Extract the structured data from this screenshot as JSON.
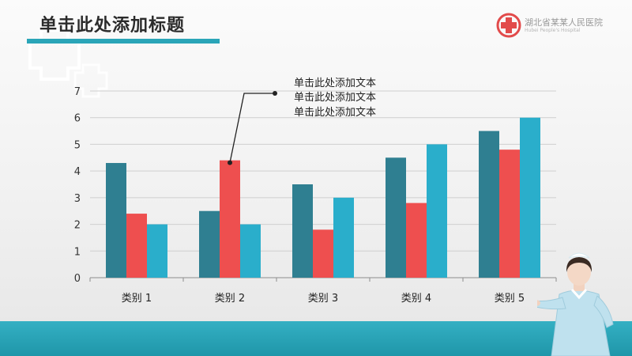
{
  "title": "单击此处添加标题",
  "logo": {
    "name": "湖北省某某人民医院",
    "subtitle": "Hubei People's Hospital"
  },
  "colors": {
    "accent": "#2aa5b8",
    "series_1": "#2f7f91",
    "series_2": "#ee4f4f",
    "series_3": "#2aaecb"
  },
  "annotation": {
    "lines": [
      "单击此处添加文本",
      "单击此处添加文本",
      "单击此处添加文本"
    ]
  },
  "chart_data": {
    "type": "bar",
    "categories": [
      "类别 1",
      "类别 2",
      "类别 3",
      "类别 4",
      "类别 5"
    ],
    "series": [
      {
        "values": [
          4.3,
          2.5,
          3.5,
          4.5,
          5.5
        ],
        "color": "#2f7f91"
      },
      {
        "values": [
          2.4,
          4.4,
          1.8,
          2.8,
          4.8
        ],
        "color": "#ee4f4f"
      },
      {
        "values": [
          2.0,
          2.0,
          3.0,
          5.0,
          6.0
        ],
        "color": "#2aaecb"
      }
    ],
    "title": "",
    "xlabel": "",
    "ylabel": "",
    "ylim": [
      0,
      7
    ],
    "yticks": [
      0,
      1,
      2,
      3,
      4,
      5,
      6,
      7
    ],
    "grid": true,
    "legend": "none"
  }
}
